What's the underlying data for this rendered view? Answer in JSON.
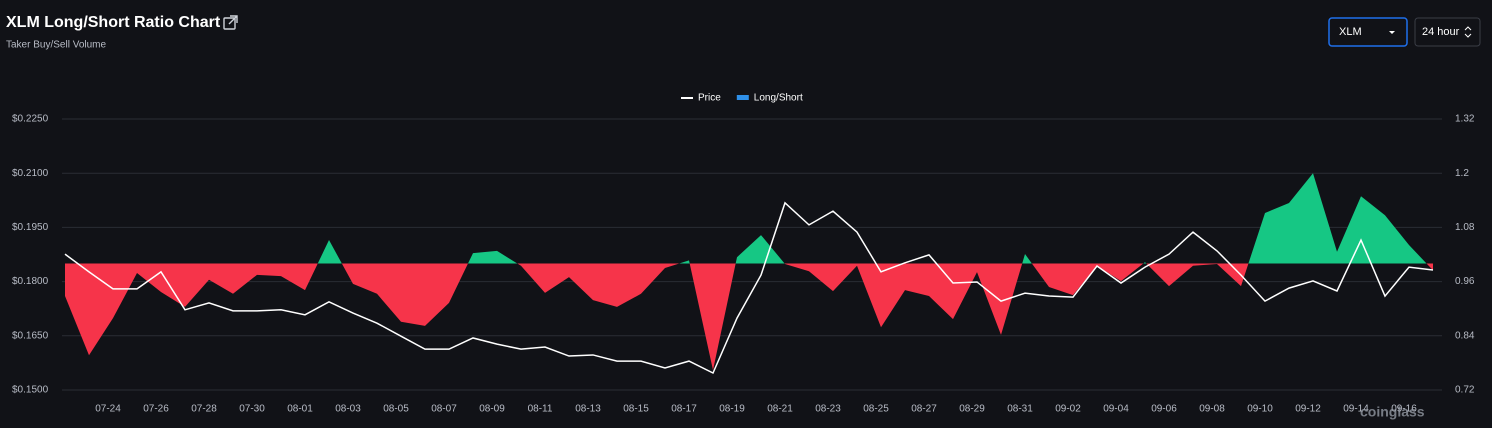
{
  "header": {
    "title": "XLM Long/Short Ratio Chart",
    "subtitle": "Taker Buy/Sell Volume",
    "symbol": "XLM",
    "interval": "24 hour"
  },
  "chart_data": {
    "type": "line",
    "categories": [
      null,
      null,
      "07-24",
      null,
      "07-26",
      null,
      "07-28",
      null,
      "07-30",
      null,
      "08-01",
      null,
      "08-03",
      null,
      "08-05",
      null,
      "08-07",
      null,
      "08-09",
      null,
      "08-11",
      null,
      "08-13",
      null,
      "08-15",
      null,
      "08-17",
      null,
      "08-19",
      null,
      "08-21",
      null,
      "08-23",
      null,
      "08-25",
      null,
      "08-27",
      null,
      "08-29",
      null,
      "08-31",
      null,
      "09-02",
      null,
      "09-04",
      null,
      "09-06",
      null,
      "09-08",
      null,
      "09-10",
      null,
      "09-12",
      null,
      "09-14",
      null,
      "09-16",
      null
    ],
    "series": [
      {
        "name": "Price",
        "color": "#ffffff",
        "axis": "y",
        "values": [
          0.1876,
          0.1827,
          0.178,
          0.178,
          0.1827,
          0.1722,
          0.1741,
          0.1719,
          0.1719,
          0.1722,
          0.1708,
          0.1744,
          0.1713,
          0.1685,
          0.1649,
          0.1613,
          0.1613,
          0.1644,
          0.1627,
          0.1613,
          0.1619,
          0.1594,
          0.1597,
          0.158,
          0.158,
          0.1561,
          0.158,
          0.1547,
          0.1699,
          0.1818,
          0.2018,
          0.1957,
          0.1995,
          0.1937,
          0.1827,
          0.1852,
          0.1874,
          0.1796,
          0.1799,
          0.1746,
          0.1768,
          0.176,
          0.1757,
          0.1843,
          0.1796,
          0.184,
          0.1876,
          0.1937,
          0.1885,
          0.1818,
          0.1746,
          0.1782,
          0.1802,
          0.1774,
          0.1915,
          0.176,
          0.184,
          0.1832
        ]
      },
      {
        "name": "Long/Short",
        "color": "#2e8fe8",
        "up_color": "#16c784",
        "down_color": "#f6344a",
        "baseline": 1,
        "axis": "y2",
        "values": [
          0.928,
          0.797,
          0.879,
          0.979,
          0.937,
          0.904,
          0.964,
          0.933,
          0.975,
          0.972,
          0.941,
          1.052,
          0.955,
          0.933,
          0.871,
          0.862,
          0.913,
          1.023,
          1.028,
          0.995,
          0.935,
          0.97,
          0.919,
          0.904,
          0.933,
          0.99,
          1.007,
          0.764,
          1.014,
          1.063,
          0.999,
          0.983,
          0.939,
          0.995,
          0.859,
          0.941,
          0.928,
          0.877,
          0.981,
          0.842,
          1.021,
          0.948,
          0.93,
          0.995,
          0.961,
          1.003,
          0.95,
          0.995,
          0.999,
          0.95,
          1.112,
          1.134,
          1.2,
          1.026,
          1.149,
          1.107,
          1.041,
          0.985
        ]
      }
    ],
    "ylim": [
      0.15,
      0.225
    ],
    "yticks": [
      {
        "value": 0.15,
        "label": "$0.1500"
      },
      {
        "value": 0.165,
        "label": "$0.1650"
      },
      {
        "value": 0.18,
        "label": "$0.1800"
      },
      {
        "value": 0.195,
        "label": "$0.1950"
      },
      {
        "value": 0.21,
        "label": "$0.2100"
      },
      {
        "value": 0.225,
        "label": "$0.2250"
      }
    ],
    "y2lim": [
      0.72,
      1.32
    ],
    "y2ticks": [
      0.72,
      0.84,
      0.96,
      1.08,
      1.2,
      1.32
    ],
    "grid": true,
    "legend": "top",
    "watermark": "coinglass"
  }
}
